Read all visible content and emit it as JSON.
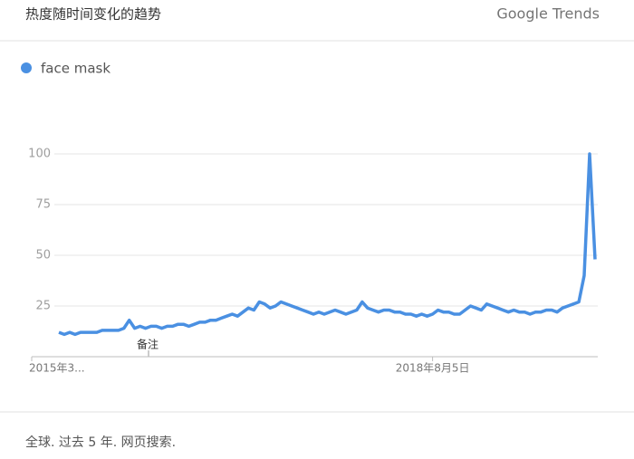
{
  "chart_data": {
    "type": "line",
    "title": "热度随时间变化的趋势",
    "brand": "Google Trends",
    "footer": "全球. 过去 5 年. 网页搜索.",
    "annotation": "备注",
    "categories": [
      "2015年3...",
      null,
      null,
      null,
      null,
      null,
      null,
      null,
      null,
      null,
      null,
      null,
      null,
      null,
      null,
      null,
      null,
      null,
      null,
      null,
      null,
      null,
      null,
      null,
      null,
      null,
      null,
      null,
      null,
      null,
      null,
      null,
      null,
      null,
      null,
      null,
      null,
      null,
      null,
      null,
      null,
      null,
      null,
      null,
      null,
      null,
      null,
      null,
      null,
      null,
      null,
      null,
      null,
      null,
      null,
      null,
      null,
      null,
      null,
      null,
      null,
      null,
      null,
      null,
      null,
      null,
      null,
      null,
      null,
      "2018年8月5日",
      null,
      null,
      null,
      null,
      null,
      null,
      null,
      null,
      null,
      null,
      null,
      null,
      null,
      null,
      null,
      null,
      null,
      null,
      null,
      null,
      null,
      null,
      null,
      null,
      null,
      null,
      null,
      null,
      null,
      null
    ],
    "series": [
      {
        "name": "face mask",
        "color": "#4a90e2",
        "values": [
          12,
          11,
          12,
          11,
          12,
          12,
          12,
          12,
          13,
          13,
          13,
          13,
          14,
          18,
          14,
          15,
          14,
          15,
          15,
          14,
          15,
          15,
          16,
          16,
          15,
          16,
          17,
          17,
          18,
          18,
          19,
          20,
          21,
          20,
          22,
          24,
          23,
          27,
          26,
          24,
          25,
          27,
          26,
          25,
          24,
          23,
          22,
          21,
          22,
          21,
          22,
          23,
          22,
          21,
          22,
          23,
          27,
          24,
          23,
          22,
          23,
          23,
          22,
          22,
          21,
          21,
          20,
          21,
          20,
          21,
          23,
          22,
          22,
          21,
          21,
          23,
          25,
          24,
          23,
          26,
          25,
          24,
          23,
          22,
          23,
          22,
          22,
          21,
          22,
          22,
          23,
          23,
          22,
          24,
          25,
          26,
          27,
          40,
          100,
          48
        ]
      }
    ],
    "ylim": [
      0,
      100
    ],
    "yticks": [
      25,
      50,
      75,
      100
    ],
    "grid": true
  }
}
